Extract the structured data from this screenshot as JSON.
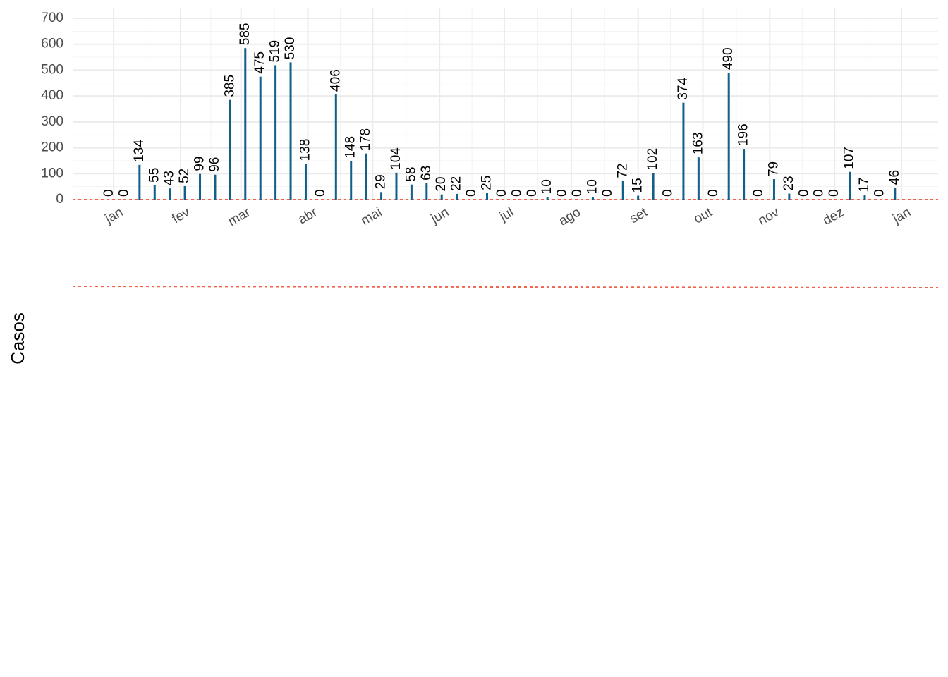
{
  "chart_data": {
    "type": "bar",
    "y_label": "Casos",
    "color": "#135f86",
    "grid": true,
    "x": [
      -2,
      5,
      12,
      19,
      26,
      33,
      40,
      47,
      54,
      61,
      68,
      75,
      82,
      89,
      96,
      103,
      110,
      117,
      124,
      131,
      138,
      145,
      152,
      159,
      166,
      173,
      180,
      187,
      194,
      201,
      208,
      215,
      222,
      229,
      236,
      243,
      250,
      257,
      264,
      271,
      278,
      285,
      292,
      299,
      306,
      313,
      320,
      327,
      334,
      341,
      348,
      355,
      362
    ],
    "values": [
      0,
      0,
      134,
      55,
      43,
      52,
      99,
      96,
      385,
      585,
      475,
      519,
      530,
      138,
      0,
      406,
      148,
      178,
      29,
      104,
      58,
      63,
      20,
      22,
      0,
      25,
      0,
      0,
      0,
      10,
      0,
      0,
      10,
      0,
      72,
      15,
      102,
      0,
      374,
      163,
      0,
      490,
      196,
      0,
      79,
      23,
      0,
      0,
      0,
      107,
      17,
      0,
      46
    ],
    "xlim": [
      -19,
      382
    ],
    "xticks": [
      {
        "value": 0,
        "label": "jan"
      },
      {
        "value": 31,
        "label": "fev"
      },
      {
        "value": 59,
        "label": "mar"
      },
      {
        "value": 90,
        "label": "abr"
      },
      {
        "value": 120,
        "label": "mai"
      },
      {
        "value": 151,
        "label": "jun"
      },
      {
        "value": 181,
        "label": "jul"
      },
      {
        "value": 212,
        "label": "ago"
      },
      {
        "value": 243,
        "label": "set"
      },
      {
        "value": 273,
        "label": "out"
      },
      {
        "value": 304,
        "label": "nov"
      },
      {
        "value": 334,
        "label": "dez"
      },
      {
        "value": 365,
        "label": "jan"
      }
    ],
    "ylim": [
      0,
      700
    ],
    "yticks": [
      0,
      100,
      200,
      300,
      400,
      500,
      600,
      700
    ]
  }
}
